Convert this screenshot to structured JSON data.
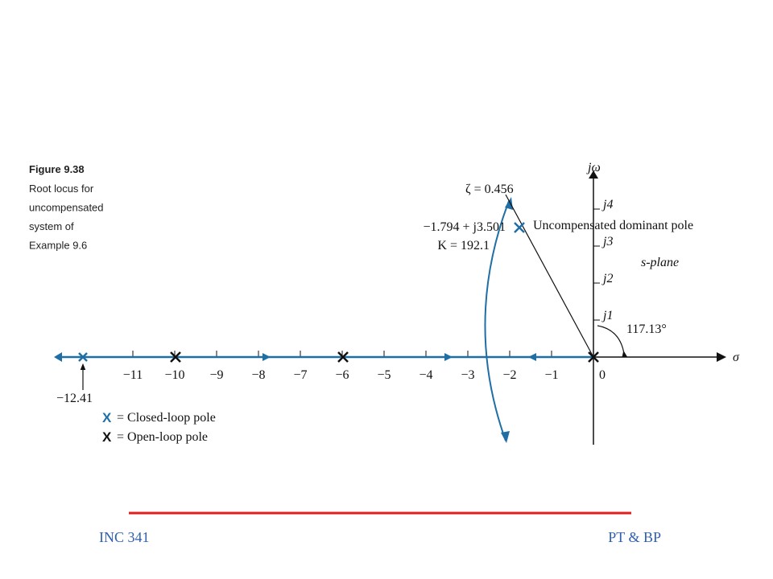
{
  "figure": {
    "number": "Figure 9.38",
    "caption_lines": [
      "Root locus for",
      "uncompensated",
      "system of",
      "Example 9.6"
    ]
  },
  "axes": {
    "imag_label": "jω",
    "real_label": "σ",
    "real_ticks": [
      "−11",
      "−10",
      "−9",
      "−8",
      "−7",
      "−6",
      "−5",
      "−4",
      "−3",
      "−2",
      "−1",
      "0"
    ],
    "imag_ticks": [
      "j1",
      "j2",
      "j3",
      "j4"
    ],
    "plane": "s-plane"
  },
  "annotations": {
    "zeta": "ζ = 0.456",
    "pole_point": "−1.794 + j3.501",
    "gain": "K = 192.1",
    "pole_label": "Uncompensated dominant pole",
    "angle": "117.13°",
    "far_pole": "−12.41"
  },
  "legend": [
    {
      "symbol": "X",
      "text": "= Closed-loop pole"
    },
    {
      "symbol": "X",
      "text": "= Open-loop pole"
    }
  ],
  "footer": {
    "left": "INC 341",
    "right": "PT & BP"
  }
}
